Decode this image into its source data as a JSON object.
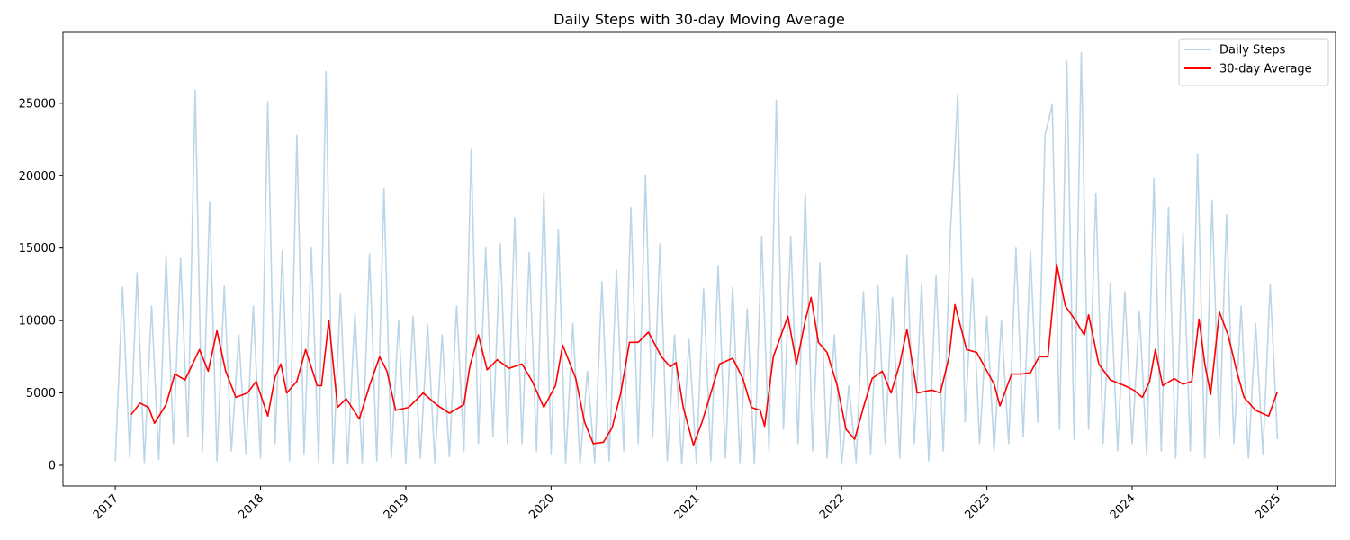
{
  "chart_data": {
    "type": "line",
    "title": "Daily Steps with 30-day Moving Average",
    "xlim": [
      2016.64,
      2025.4
    ],
    "xticks": [
      2017,
      2018,
      2019,
      2020,
      2021,
      2022,
      2023,
      2024,
      2025
    ],
    "ylim": [
      -1430,
      29900
    ],
    "yticks": [
      0,
      5000,
      10000,
      15000,
      20000,
      25000
    ],
    "legend": "upper right",
    "series": [
      {
        "name": "Daily Steps",
        "color": "#bad6e8",
        "x": [
          2017.0,
          2017.05,
          2017.1,
          2017.15,
          2017.2,
          2017.25,
          2017.3,
          2017.35,
          2017.4,
          2017.45,
          2017.5,
          2017.55,
          2017.6,
          2017.65,
          2017.7,
          2017.75,
          2017.8,
          2017.85,
          2017.9,
          2017.95,
          2018.0,
          2018.05,
          2018.1,
          2018.15,
          2018.2,
          2018.25,
          2018.3,
          2018.35,
          2018.4,
          2018.45,
          2018.5,
          2018.55,
          2018.6,
          2018.65,
          2018.7,
          2018.75,
          2018.8,
          2018.85,
          2018.9,
          2018.95,
          2019.0,
          2019.05,
          2019.1,
          2019.15,
          2019.2,
          2019.25,
          2019.3,
          2019.35,
          2019.4,
          2019.45,
          2019.5,
          2019.55,
          2019.6,
          2019.65,
          2019.7,
          2019.75,
          2019.8,
          2019.85,
          2019.9,
          2019.95,
          2020.0,
          2020.05,
          2020.1,
          2020.15,
          2020.2,
          2020.25,
          2020.3,
          2020.35,
          2020.4,
          2020.45,
          2020.5,
          2020.55,
          2020.6,
          2020.65,
          2020.7,
          2020.75,
          2020.8,
          2020.85,
          2020.9,
          2020.95,
          2021.0,
          2021.05,
          2021.1,
          2021.15,
          2021.2,
          2021.25,
          2021.3,
          2021.35,
          2021.4,
          2021.45,
          2021.5,
          2021.55,
          2021.6,
          2021.65,
          2021.7,
          2021.75,
          2021.8,
          2021.85,
          2021.9,
          2021.95,
          2022.0,
          2022.05,
          2022.1,
          2022.15,
          2022.2,
          2022.25,
          2022.3,
          2022.35,
          2022.4,
          2022.45,
          2022.5,
          2022.55,
          2022.6,
          2022.65,
          2022.7,
          2022.75,
          2022.8,
          2022.85,
          2022.9,
          2022.95,
          2023.0,
          2023.05,
          2023.1,
          2023.15,
          2023.2,
          2023.25,
          2023.3,
          2023.35,
          2023.4,
          2023.45,
          2023.5,
          2023.55,
          2023.6,
          2023.65,
          2023.7,
          2023.75,
          2023.8,
          2023.85,
          2023.9,
          2023.95,
          2024.0,
          2024.05,
          2024.1,
          2024.15,
          2024.2,
          2024.25,
          2024.3,
          2024.35,
          2024.4,
          2024.45,
          2024.5,
          2024.55,
          2024.6,
          2024.65,
          2024.7,
          2024.75,
          2024.8,
          2024.85,
          2024.9,
          2024.95,
          2025.0
        ],
        "values": [
          300,
          12300,
          500,
          13300,
          200,
          11000,
          400,
          14500,
          1500,
          14300,
          2000,
          25900,
          1000,
          18200,
          300,
          12400,
          1000,
          9000,
          800,
          11000,
          500,
          25100,
          1500,
          14800,
          300,
          22800,
          800,
          15000,
          200,
          27200,
          100,
          11800,
          100,
          10500,
          200,
          14600,
          300,
          19100,
          500,
          10000,
          100,
          10300,
          500,
          9700,
          200,
          9000,
          600,
          11000,
          1000,
          21800,
          1500,
          15000,
          2000,
          15300,
          1500,
          17100,
          1500,
          14700,
          1000,
          18800,
          800,
          16300,
          200,
          9800,
          100,
          6500,
          200,
          12700,
          300,
          13500,
          1000,
          17800,
          1500,
          20000,
          2000,
          15300,
          300,
          9000,
          100,
          8700,
          200,
          12200,
          300,
          13800,
          500,
          12300,
          200,
          10800,
          100,
          15800,
          1000,
          25200,
          2500,
          15800,
          1500,
          18800,
          1000,
          14000,
          500,
          9000,
          100,
          5500,
          200,
          12000,
          800,
          12400,
          1500,
          11600,
          500,
          14500,
          1500,
          12500,
          300,
          13100,
          1000,
          16300,
          25600,
          3000,
          12900,
          1500,
          10300,
          1000,
          10000,
          1500,
          15000,
          2000,
          14800,
          3000,
          22800,
          24900,
          2500,
          27900,
          1800,
          28500,
          2500,
          18800,
          1500,
          12600,
          1000,
          12000,
          1500,
          10600,
          800,
          19800,
          1000,
          17800,
          500,
          16000,
          1000,
          21500,
          500,
          18300,
          2000,
          17300,
          1500,
          11000,
          500,
          9800,
          800,
          12500,
          1800
        ]
      },
      {
        "name": "30-day Average",
        "color": "red",
        "x": [
          2017.11,
          2017.17,
          2017.23,
          2017.27,
          2017.35,
          2017.41,
          2017.48,
          2017.58,
          2017.64,
          2017.7,
          2017.76,
          2017.83,
          2017.91,
          2017.97,
          2018.05,
          2018.1,
          2018.14,
          2018.18,
          2018.25,
          2018.31,
          2018.39,
          2018.42,
          2018.47,
          2018.53,
          2018.59,
          2018.68,
          2018.75,
          2018.82,
          2018.87,
          2018.93,
          2019.02,
          2019.12,
          2019.21,
          2019.3,
          2019.4,
          2019.44,
          2019.5,
          2019.56,
          2019.63,
          2019.71,
          2019.8,
          2019.87,
          2019.95,
          2020.03,
          2020.08,
          2020.17,
          2020.23,
          2020.29,
          2020.36,
          2020.42,
          2020.48,
          2020.54,
          2020.6,
          2020.67,
          2020.76,
          2020.82,
          2020.86,
          2020.91,
          2020.98,
          2021.04,
          2021.1,
          2021.16,
          2021.25,
          2021.32,
          2021.38,
          2021.44,
          2021.47,
          2021.53,
          2021.63,
          2021.69,
          2021.75,
          2021.79,
          2021.84,
          2021.9,
          2021.97,
          2022.03,
          2022.09,
          2022.15,
          2022.21,
          2022.28,
          2022.34,
          2022.4,
          2022.45,
          2022.52,
          2022.62,
          2022.68,
          2022.74,
          2022.78,
          2022.86,
          2022.93,
          2022.99,
          2023.05,
          2023.09,
          2023.17,
          2023.24,
          2023.3,
          2023.36,
          2023.42,
          2023.48,
          2023.54,
          2023.61,
          2023.67,
          2023.7,
          2023.77,
          2023.85,
          2023.95,
          2024.01,
          2024.07,
          2024.12,
          2024.16,
          2024.21,
          2024.29,
          2024.35,
          2024.41,
          2024.46,
          2024.5,
          2024.54,
          2024.6,
          2024.66,
          2024.72,
          2024.77,
          2024.85,
          2024.94,
          2025.0
        ],
        "values": [
          3500,
          4300,
          4000,
          2900,
          4200,
          6300,
          5900,
          8000,
          6500,
          9300,
          6500,
          4700,
          5000,
          5800,
          3400,
          6100,
          7000,
          5000,
          5800,
          8000,
          5500,
          5500,
          10000,
          4000,
          4600,
          3200,
          5500,
          7500,
          6500,
          3800,
          4000,
          5000,
          4200,
          3600,
          4200,
          6800,
          9000,
          6600,
          7300,
          6700,
          7000,
          5800,
          4000,
          5500,
          8300,
          6000,
          3000,
          1500,
          1600,
          2600,
          5000,
          8500,
          8500,
          9200,
          7500,
          6800,
          7100,
          4000,
          1400,
          3000,
          5000,
          7000,
          7400,
          6000,
          4000,
          3800,
          2700,
          7500,
          10300,
          7000,
          10000,
          11600,
          8500,
          7800,
          5500,
          2500,
          1800,
          4000,
          6000,
          6500,
          5000,
          7000,
          9400,
          5000,
          5200,
          5000,
          7500,
          11100,
          8000,
          7800,
          6700,
          5600,
          4100,
          6300,
          6300,
          6400,
          7500,
          7500,
          13900,
          11000,
          10000,
          9000,
          10400,
          7000,
          5900,
          5500,
          5200,
          4700,
          5800,
          8000,
          5500,
          6000,
          5600,
          5800,
          10100,
          7000,
          4900,
          10600,
          9000,
          6500,
          4700,
          3800,
          3400,
          5100
        ]
      }
    ]
  }
}
